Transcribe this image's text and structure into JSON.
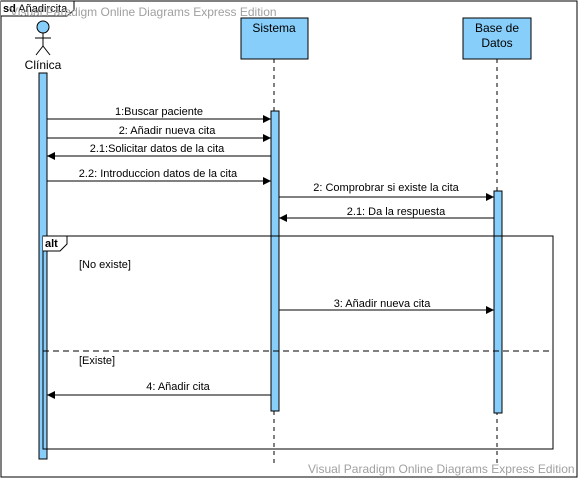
{
  "frame": {
    "kind": "sd",
    "name": "Añadircita"
  },
  "watermark": "Visual Paradigm Online Diagrams Express Edition",
  "actor": {
    "name": "Clínica"
  },
  "lifelines": [
    {
      "name": "Sistema"
    },
    {
      "name_line1": "Base de",
      "name_line2": "Datos"
    }
  ],
  "messages": [
    {
      "label": "1:Buscar paciente"
    },
    {
      "label": "2: Añadir nueva cita"
    },
    {
      "label": "2.1:Solicitar datos de la cita"
    },
    {
      "label": "2.2: Introduccion datos de la cita"
    },
    {
      "label": "2: Comprobrar si existe la cita"
    },
    {
      "label": "2.1: Da la respuesta"
    },
    {
      "label": "3: Añadir nueva cita"
    },
    {
      "label": "4: Añadir cita"
    }
  ],
  "fragment": {
    "operator": "alt",
    "guards": [
      "[No existe]",
      "[Existe]"
    ]
  },
  "colors": {
    "lifeline_fill": "#87cefa",
    "activation_fill": "#87cefa",
    "border": "#000000"
  }
}
